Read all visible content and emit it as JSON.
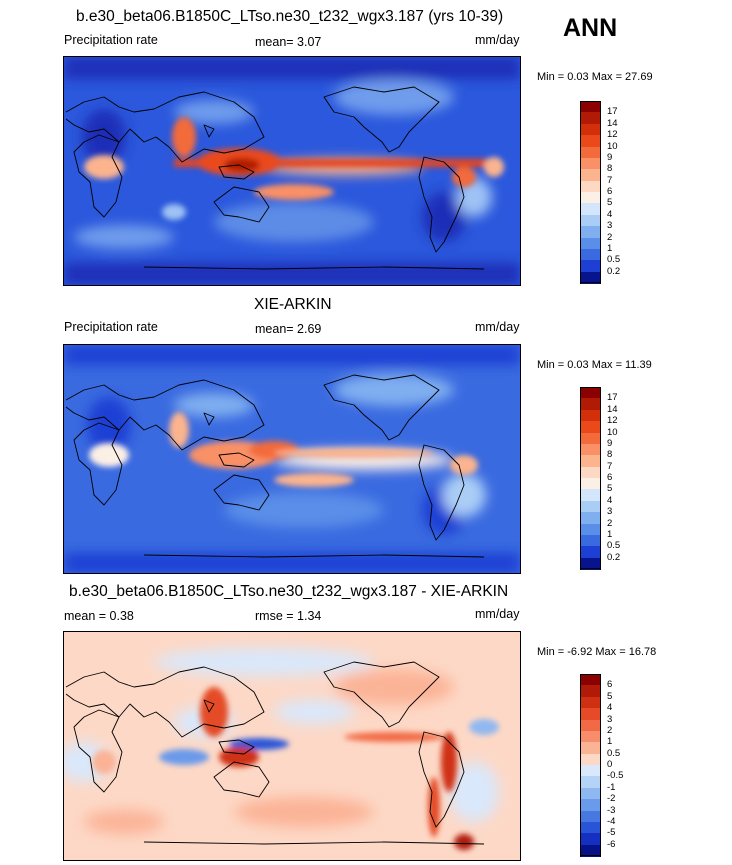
{
  "season": "ANN",
  "panels": [
    {
      "title": "b.e30_beta06.B1850C_LTso.ne30_t232_wgx3.187 (yrs 10-39)",
      "left_label": "Precipitation rate",
      "mid_label": "mean=   3.07",
      "right_label": "mm/day",
      "minmax": "Min =   0.03 Max =  27.69",
      "colorbar": {
        "levels": [
          "17",
          "14",
          "12",
          "10",
          "9",
          "8",
          "7",
          "6",
          "5",
          "4",
          "3",
          "2",
          "1",
          "0.5",
          "0.2"
        ],
        "colors": [
          "#8b0000",
          "#b11a04",
          "#d22f0a",
          "#ea4a1a",
          "#f36b3a",
          "#f99066",
          "#fbb48e",
          "#fdd9c3",
          "#fcefe6",
          "#d3e6fb",
          "#aacdf6",
          "#80aff0",
          "#5a8ee8",
          "#3a6ae0",
          "#1d3fd4",
          "#08148c"
        ]
      }
    },
    {
      "title": "XIE-ARKIN",
      "left_label": "Precipitation rate",
      "mid_label": "mean=   2.69",
      "right_label": "mm/day",
      "minmax": "Min =   0.03 Max =  11.39",
      "colorbar": {
        "levels": [
          "17",
          "14",
          "12",
          "10",
          "9",
          "8",
          "7",
          "6",
          "5",
          "4",
          "3",
          "2",
          "1",
          "0.5",
          "0.2"
        ],
        "colors": [
          "#8b0000",
          "#b11a04",
          "#d22f0a",
          "#ea4a1a",
          "#f36b3a",
          "#f99066",
          "#fbb48e",
          "#fdd9c3",
          "#fcefe6",
          "#d3e6fb",
          "#aacdf6",
          "#80aff0",
          "#5a8ee8",
          "#3a6ae0",
          "#1d3fd4",
          "#08148c"
        ]
      }
    },
    {
      "title": "b.e30_beta06.B1850C_LTso.ne30_t232_wgx3.187 - XIE-ARKIN",
      "left_label": "mean =   0.38",
      "mid_label": "rmse =   1.34",
      "right_label": "mm/day",
      "minmax": "Min =  -6.92 Max =  16.78",
      "colorbar": {
        "levels": [
          "6",
          "5",
          "4",
          "3",
          "2",
          "1",
          "0.5",
          "0",
          "-0.5",
          "-1",
          "-2",
          "-3",
          "-4",
          "-5",
          "-6"
        ],
        "colors": [
          "#8b0000",
          "#b01a08",
          "#cf3012",
          "#e44b26",
          "#f26a45",
          "#f88d6c",
          "#fbb396",
          "#fdd8c6",
          "#d9e8fb",
          "#b5d2f7",
          "#8fb8f1",
          "#6a9aea",
          "#4778e2",
          "#2a54d8",
          "#1530c0",
          "#061288"
        ]
      }
    }
  ]
}
